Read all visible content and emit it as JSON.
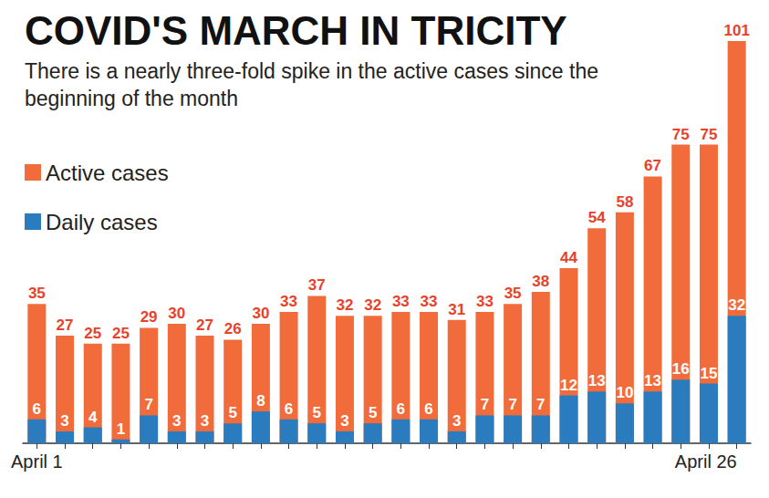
{
  "chart_data": {
    "type": "bar",
    "title": "COVID'S MARCH IN TRICITY",
    "subtitle": "There is a nearly three-fold spike in the active cases since the beginning of the month",
    "categories": [
      "April 1",
      null,
      null,
      null,
      null,
      null,
      null,
      null,
      null,
      null,
      null,
      null,
      null,
      null,
      null,
      null,
      null,
      null,
      null,
      null,
      null,
      null,
      null,
      null,
      null,
      "April 26"
    ],
    "series": [
      {
        "name": "Active cases",
        "color": "#f26b3a",
        "values": [
          35,
          27,
          25,
          25,
          29,
          30,
          27,
          26,
          30,
          33,
          37,
          32,
          32,
          33,
          33,
          31,
          33,
          35,
          38,
          44,
          54,
          58,
          67,
          75,
          75,
          101
        ]
      },
      {
        "name": "Daily cases",
        "color": "#2b7bbf",
        "values": [
          6,
          3,
          4,
          1,
          7,
          3,
          3,
          5,
          8,
          6,
          5,
          3,
          5,
          6,
          6,
          3,
          7,
          7,
          7,
          12,
          13,
          10,
          13,
          16,
          15,
          32
        ]
      }
    ],
    "ylim": [
      0,
      101
    ],
    "yticks": [
      0,
      101
    ],
    "grid": false,
    "stacked": false,
    "legend": "top-left",
    "data_labels": true,
    "tick_labels": "x"
  }
}
